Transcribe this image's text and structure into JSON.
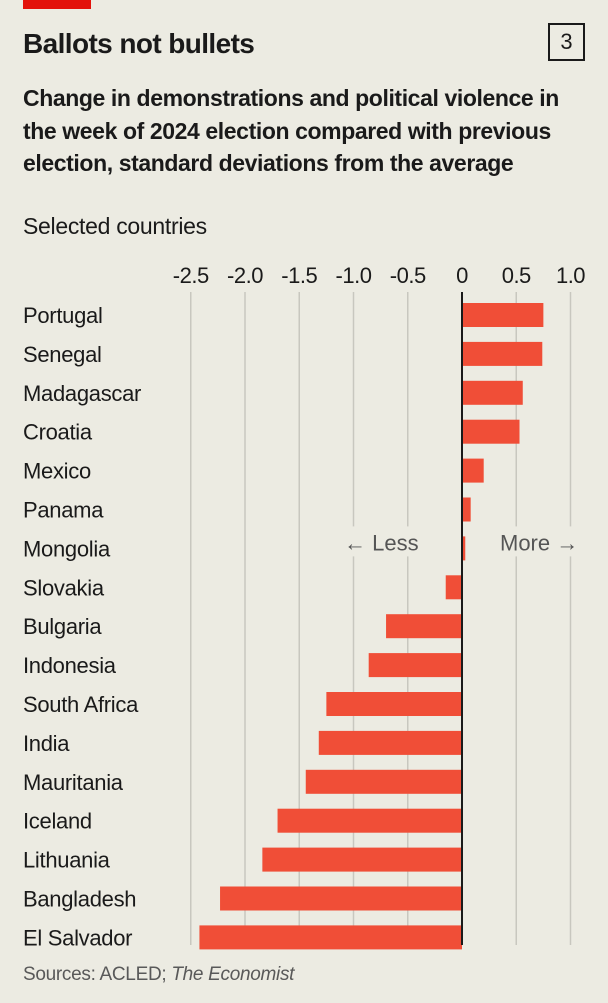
{
  "header": {
    "title": "Ballots not bullets",
    "chart_number": "3",
    "subtitle": "Change in demonstrations and political violence in the week of 2024 election compared with previous election, standard deviations from the average",
    "subsubtitle": "Selected countries"
  },
  "footer": {
    "source_prefix": "Sources: ACLED; ",
    "source_italic": "The Economist"
  },
  "colors": {
    "bar": "#F04E37",
    "brand_red": "#E3120B",
    "gridline": "#C8C7BF",
    "zero_line": "#1a1a1a",
    "background": "#ECEBE2"
  },
  "chart_data": {
    "type": "bar",
    "orientation": "horizontal",
    "title": "Ballots not bullets",
    "subtitle": "Change in demonstrations and political violence in the week of 2024 election compared with previous election, standard deviations from the average",
    "xlabel": "",
    "ylabel": "",
    "xlim": [
      -2.5,
      1.0
    ],
    "xticks": [
      -2.5,
      -2.0,
      -1.5,
      -1.0,
      -0.5,
      0,
      0.5,
      1.0
    ],
    "xtick_labels": [
      "-2.5",
      "-2.0",
      "-1.5",
      "-1.0",
      "-0.5",
      "0",
      "0.5",
      "1.0"
    ],
    "grid": true,
    "annotations": {
      "less": "← Less",
      "more": "More →"
    },
    "categories": [
      "Portugal",
      "Senegal",
      "Madagascar",
      "Croatia",
      "Mexico",
      "Panama",
      "Mongolia",
      "Slovakia",
      "Bulgaria",
      "Indonesia",
      "South Africa",
      "India",
      "Mauritania",
      "Iceland",
      "Lithuania",
      "Bangladesh",
      "El Salvador"
    ],
    "values": [
      0.75,
      0.74,
      0.56,
      0.53,
      0.2,
      0.08,
      0.03,
      -0.15,
      -0.7,
      -0.86,
      -1.25,
      -1.32,
      -1.44,
      -1.7,
      -1.84,
      -2.23,
      -2.42
    ]
  }
}
